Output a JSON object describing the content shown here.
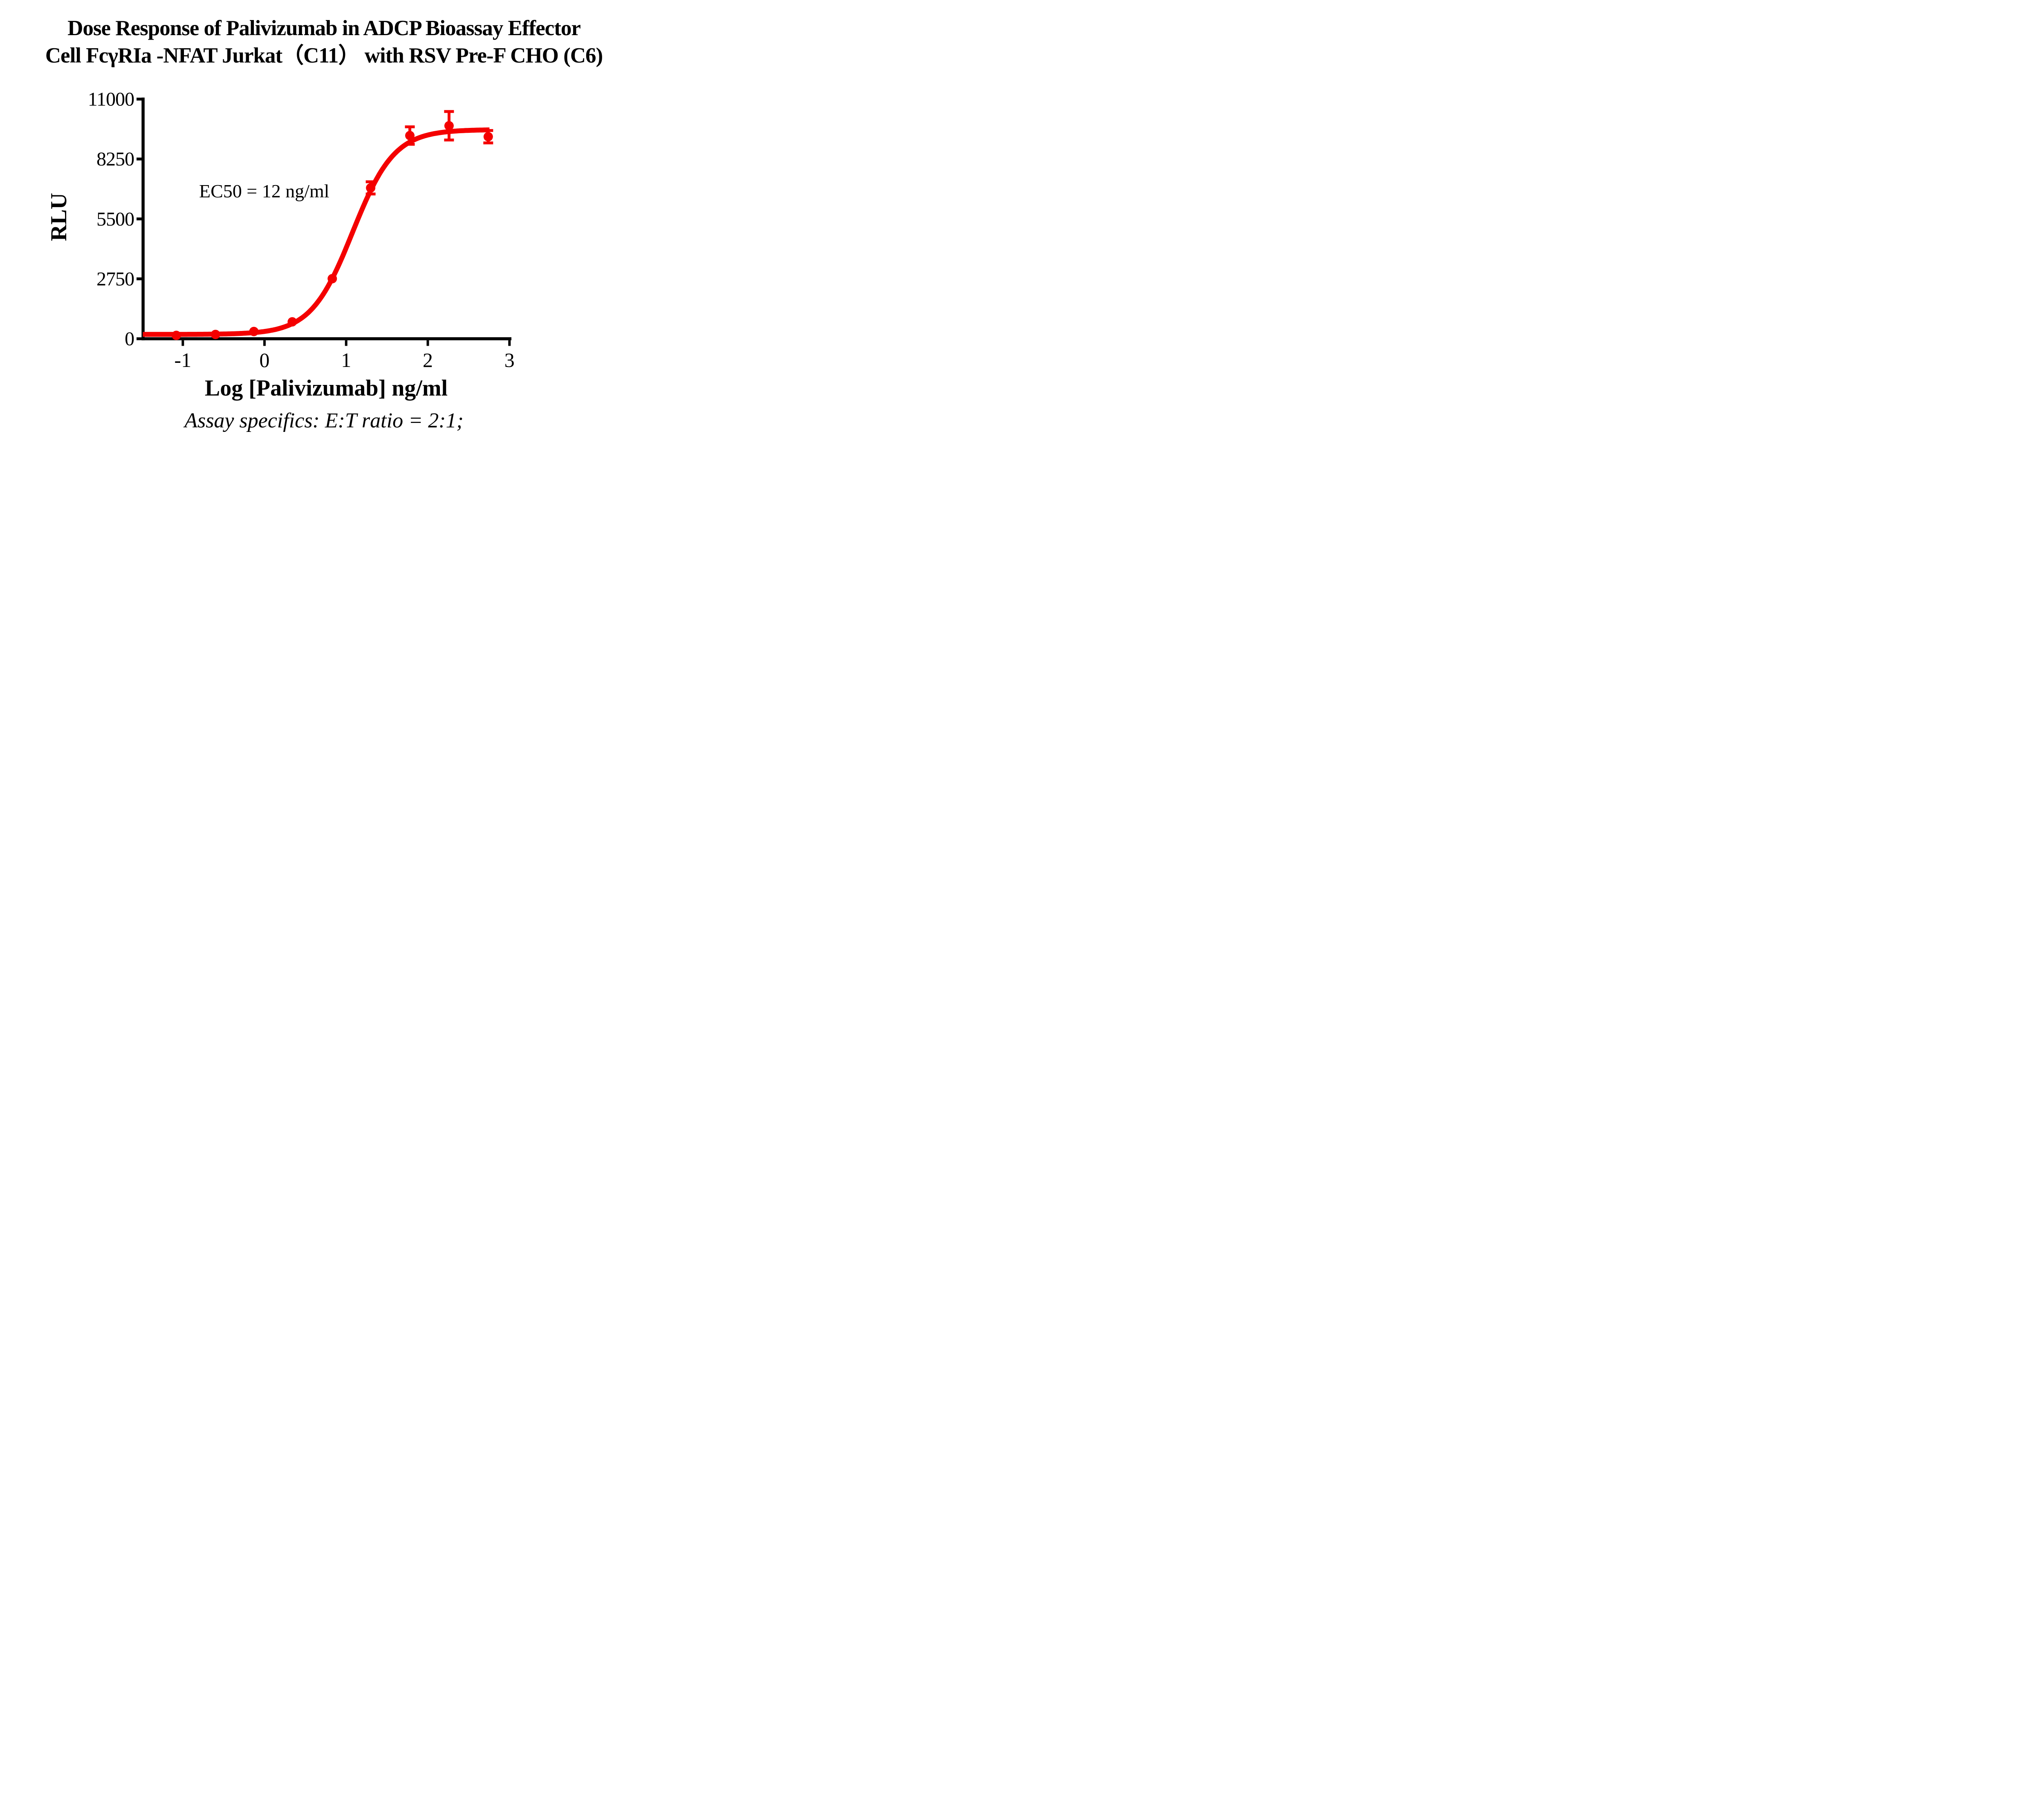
{
  "chart_data": {
    "type": "scatter",
    "subtype": "dose-response-4PL-fit",
    "title": [
      "Dose Response of Palivizumab in ADCP Bioassay Effector",
      "Cell FcγRIa -NFAT Jurkat（C11） with RSV Pre-F CHO (C6)"
    ],
    "xlabel": "Log [Palivizumab] ng/ml",
    "ylabel": "RLU",
    "annotation": "EC50 = 12 ng/ml",
    "footer_note": "Assay specifics: E:T ratio = 2:1;",
    "xlim": [
      -1.5,
      3
    ],
    "ylim": [
      0,
      11000
    ],
    "x_ticks": [
      -1,
      0,
      1,
      2,
      3
    ],
    "y_ticks": [
      0,
      2750,
      5500,
      8250,
      11000
    ],
    "grid": false,
    "legend_position": "none",
    "colors": {
      "series": "#f40000",
      "axes": "#000000"
    },
    "series": [
      {
        "name": "Palivizumab",
        "color": "#f40000",
        "marker": "circle",
        "points": [
          {
            "log_conc": -1.08,
            "rlu": 155,
            "err": 0
          },
          {
            "log_conc": -0.6,
            "rlu": 197,
            "err": 0
          },
          {
            "log_conc": -0.13,
            "rlu": 333,
            "err": 0
          },
          {
            "log_conc": 0.34,
            "rlu": 775,
            "err": 0
          },
          {
            "log_conc": 0.83,
            "rlu": 2758,
            "err": 0
          },
          {
            "log_conc": 1.3,
            "rlu": 6924,
            "err": 280
          },
          {
            "log_conc": 1.78,
            "rlu": 9326,
            "err": 400
          },
          {
            "log_conc": 2.26,
            "rlu": 9776,
            "err": 655
          },
          {
            "log_conc": 2.74,
            "rlu": 9274,
            "err": 285
          }
        ],
        "fit": {
          "model": "4PL",
          "bottom": 200,
          "top": 9600,
          "log_ec50": 1.08,
          "hill": 1.7,
          "x_start": -1.49,
          "x_end": 2.76
        },
        "ec50_ng_ml": 12
      }
    ]
  }
}
